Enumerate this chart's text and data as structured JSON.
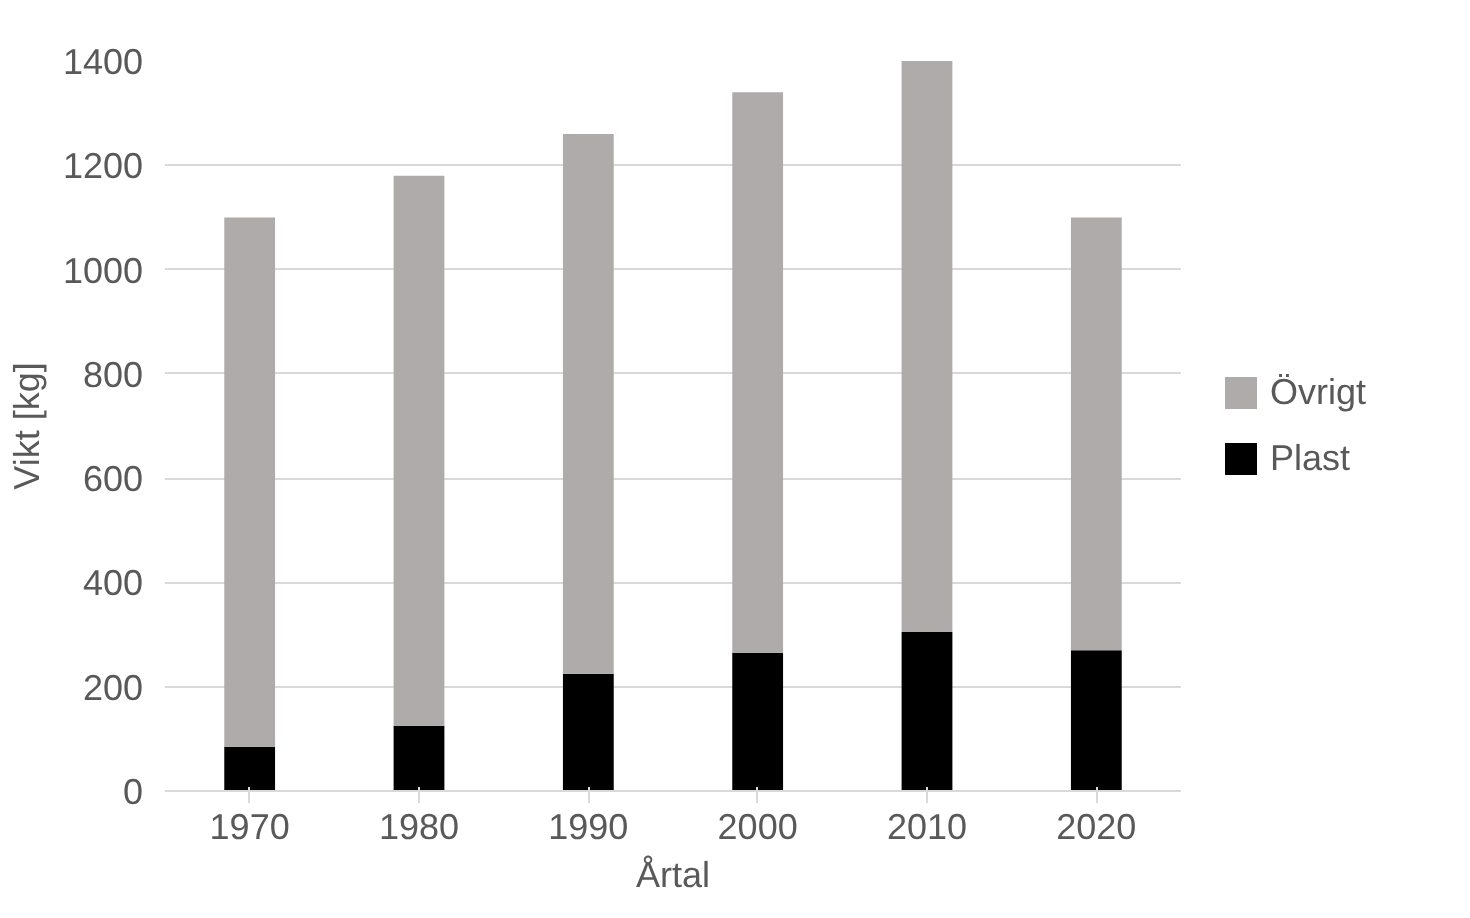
{
  "chart_data": {
    "type": "bar",
    "stacked": true,
    "xlabel": "Årtal",
    "ylabel": "Vikt [kg]",
    "categories": [
      "1970",
      "1980",
      "1990",
      "2000",
      "2010",
      "2020"
    ],
    "series": [
      {
        "name": "Plast",
        "color": "#000000",
        "values": [
          85,
          125,
          225,
          265,
          305,
          270
        ]
      },
      {
        "name": "Övrigt",
        "color": "#afabab",
        "values": [
          1015,
          1055,
          1035,
          1075,
          1095,
          830
        ]
      }
    ],
    "ylim": [
      0,
      1400
    ],
    "yticks": [
      0,
      200,
      400,
      600,
      800,
      1000,
      1200,
      1400
    ],
    "grid": "y",
    "legend": "right"
  }
}
